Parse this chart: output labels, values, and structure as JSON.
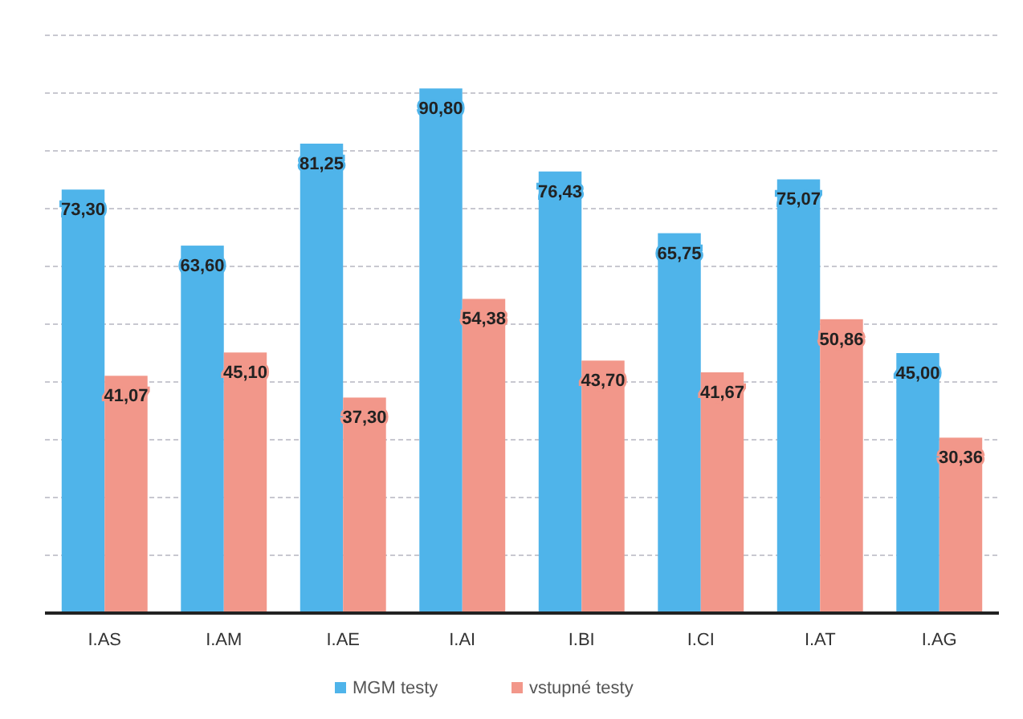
{
  "chart_data": {
    "type": "bar",
    "categories": [
      "I.AS",
      "I.AM",
      "I.AE",
      "I.AI",
      "I.BI",
      "I.CI",
      "I.AT",
      "I.AG"
    ],
    "series": [
      {
        "name": "MGM testy",
        "color": "#4fb4ea",
        "values": [
          73.3,
          63.6,
          81.25,
          90.8,
          76.43,
          65.75,
          75.07,
          45.0
        ],
        "value_labels": [
          "73,30",
          "63,60",
          "81,25",
          "90,80",
          "76,43",
          "65,75",
          "75,07",
          "45,00"
        ]
      },
      {
        "name": "vstupné testy",
        "color": "#f2978a",
        "values": [
          41.07,
          45.1,
          37.3,
          54.38,
          43.7,
          41.67,
          50.86,
          30.36
        ],
        "value_labels": [
          "41,07",
          "45,10",
          "37,30",
          "54,38",
          "43,70",
          "41,67",
          "50,86",
          "30,36"
        ]
      }
    ],
    "ylim": [
      0,
      100
    ],
    "yticks": [
      {
        "value": 0,
        "label": null
      },
      {
        "value": 10,
        "label": null
      },
      {
        "value": 20,
        "label": null
      },
      {
        "value": 30,
        "label": null
      },
      {
        "value": 40,
        "label": null
      },
      {
        "value": 50,
        "label": null
      },
      {
        "value": 60,
        "label": null
      },
      {
        "value": 70,
        "label": null
      },
      {
        "value": 80,
        "label": null
      },
      {
        "value": 90,
        "label": null
      },
      {
        "value": 100,
        "label": null
      }
    ],
    "grid": "y",
    "tick_labels": "x",
    "legend": "bottom"
  }
}
